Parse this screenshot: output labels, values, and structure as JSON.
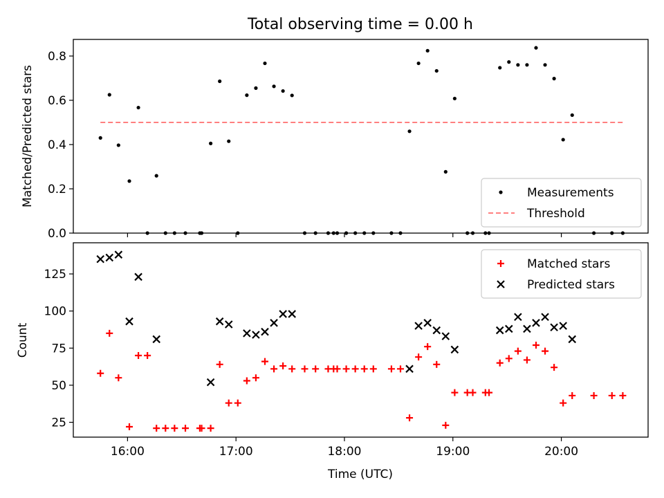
{
  "chart_data": [
    {
      "type": "scatter",
      "title": "Total observing time = 0.00 h",
      "ylabel": "Matched/Predicted stars",
      "xlabel": "",
      "ylim": [
        0,
        0.875
      ],
      "yticks": [
        0.0,
        0.2,
        0.4,
        0.6,
        0.8
      ],
      "ytick_labels": [
        "0.0",
        "0.2",
        "0.4",
        "0.6",
        "0.8"
      ],
      "legend": "bottom-right",
      "series": [
        {
          "name": "Measurements",
          "color": "#000000",
          "marker": "dot",
          "points": [
            [
              "15:45",
              0.43
            ],
            [
              "15:50",
              0.625
            ],
            [
              "15:55",
              0.397
            ],
            [
              "16:01",
              0.235
            ],
            [
              "16:06",
              0.567
            ],
            [
              "16:11",
              0.0
            ],
            [
              "16:16",
              0.259
            ],
            [
              "16:21",
              0.0
            ],
            [
              "16:26",
              0.0
            ],
            [
              "16:32",
              0.0
            ],
            [
              "16:40",
              0.0
            ],
            [
              "16:41",
              0.0
            ],
            [
              "16:46",
              0.405
            ],
            [
              "16:51",
              0.686
            ],
            [
              "16:56",
              0.415
            ],
            [
              "17:01",
              0.0
            ],
            [
              "17:06",
              0.623
            ],
            [
              "17:11",
              0.655
            ],
            [
              "17:16",
              0.767
            ],
            [
              "17:21",
              0.663
            ],
            [
              "17:26",
              0.642
            ],
            [
              "17:31",
              0.622
            ],
            [
              "17:38",
              0.0
            ],
            [
              "17:44",
              0.0
            ],
            [
              "17:51",
              0.0
            ],
            [
              "17:54",
              0.0
            ],
            [
              "17:56",
              0.0
            ],
            [
              "18:01",
              0.0
            ],
            [
              "18:06",
              0.0
            ],
            [
              "18:11",
              0.0
            ],
            [
              "18:16",
              0.0
            ],
            [
              "18:26",
              0.0
            ],
            [
              "18:31",
              0.0
            ],
            [
              "18:36",
              0.46
            ],
            [
              "18:41",
              0.767
            ],
            [
              "18:46",
              0.824
            ],
            [
              "18:51",
              0.733
            ],
            [
              "18:56",
              0.277
            ],
            [
              "19:01",
              0.608
            ],
            [
              "19:08",
              0.0
            ],
            [
              "19:11",
              0.0
            ],
            [
              "19:18",
              0.0
            ],
            [
              "19:20",
              0.0
            ],
            [
              "19:26",
              0.747
            ],
            [
              "19:31",
              0.773
            ],
            [
              "19:36",
              0.76
            ],
            [
              "19:41",
              0.76
            ],
            [
              "19:46",
              0.837
            ],
            [
              "19:51",
              0.76
            ],
            [
              "19:56",
              0.698
            ],
            [
              "20:01",
              0.422
            ],
            [
              "20:06",
              0.533
            ],
            [
              "20:18",
              0.0
            ],
            [
              "20:28",
              0.0
            ],
            [
              "20:34",
              0.0
            ]
          ]
        },
        {
          "name": "Threshold",
          "color": "#ff7f7f",
          "style": "dashed",
          "points": [
            [
              "15:45",
              0.5
            ],
            [
              "20:34",
              0.5
            ]
          ]
        }
      ]
    },
    {
      "type": "scatter",
      "title": "",
      "xlabel": "Time (UTC)",
      "ylabel": "Count",
      "ylim": [
        15,
        146
      ],
      "yticks": [
        25,
        50,
        75,
        100,
        125
      ],
      "ytick_labels": [
        "25",
        "50",
        "75",
        "100",
        "125"
      ],
      "xlim": [
        "15:30",
        "20:48"
      ],
      "xticks": [
        "16:00",
        "17:00",
        "18:00",
        "19:00",
        "20:00"
      ],
      "xtick_labels": [
        "16:00",
        "17:00",
        "18:00",
        "19:00",
        "20:00"
      ],
      "legend": "top-right",
      "series": [
        {
          "name": "Matched stars",
          "color": "#ff0000",
          "marker": "plus",
          "points": [
            [
              "15:45",
              58
            ],
            [
              "15:50",
              85
            ],
            [
              "15:55",
              55
            ],
            [
              "16:01",
              22
            ],
            [
              "16:06",
              70
            ],
            [
              "16:11",
              70
            ],
            [
              "16:16",
              21
            ],
            [
              "16:21",
              21
            ],
            [
              "16:26",
              21
            ],
            [
              "16:32",
              21
            ],
            [
              "16:40",
              21
            ],
            [
              "16:41",
              21
            ],
            [
              "16:46",
              21
            ],
            [
              "16:51",
              64
            ],
            [
              "16:56",
              38
            ],
            [
              "17:01",
              38
            ],
            [
              "17:06",
              53
            ],
            [
              "17:11",
              55
            ],
            [
              "17:16",
              66
            ],
            [
              "17:21",
              61
            ],
            [
              "17:26",
              63
            ],
            [
              "17:31",
              61
            ],
            [
              "17:38",
              61
            ],
            [
              "17:44",
              61
            ],
            [
              "17:51",
              61
            ],
            [
              "17:54",
              61
            ],
            [
              "17:56",
              61
            ],
            [
              "18:01",
              61
            ],
            [
              "18:06",
              61
            ],
            [
              "18:11",
              61
            ],
            [
              "18:16",
              61
            ],
            [
              "18:26",
              61
            ],
            [
              "18:31",
              61
            ],
            [
              "18:36",
              28
            ],
            [
              "18:41",
              69
            ],
            [
              "18:46",
              76
            ],
            [
              "18:51",
              64
            ],
            [
              "18:56",
              23
            ],
            [
              "19:01",
              45
            ],
            [
              "19:08",
              45
            ],
            [
              "19:11",
              45
            ],
            [
              "19:18",
              45
            ],
            [
              "19:20",
              45
            ],
            [
              "19:26",
              65
            ],
            [
              "19:31",
              68
            ],
            [
              "19:36",
              73
            ],
            [
              "19:41",
              67
            ],
            [
              "19:46",
              77
            ],
            [
              "19:51",
              73
            ],
            [
              "19:56",
              62
            ],
            [
              "20:01",
              38
            ],
            [
              "20:06",
              43
            ],
            [
              "20:18",
              43
            ],
            [
              "20:28",
              43
            ],
            [
              "20:34",
              43
            ]
          ]
        },
        {
          "name": "Predicted stars",
          "color": "#000000",
          "marker": "x",
          "points": [
            [
              "15:45",
              135
            ],
            [
              "15:50",
              136
            ],
            [
              "15:55",
              138
            ],
            [
              "16:01",
              93
            ],
            [
              "16:06",
              123
            ],
            [
              "16:16",
              81
            ],
            [
              "16:46",
              52
            ],
            [
              "16:51",
              93
            ],
            [
              "16:56",
              91
            ],
            [
              "17:06",
              85
            ],
            [
              "17:11",
              84
            ],
            [
              "17:16",
              86
            ],
            [
              "17:21",
              92
            ],
            [
              "17:26",
              98
            ],
            [
              "17:31",
              98
            ],
            [
              "18:36",
              61
            ],
            [
              "18:41",
              90
            ],
            [
              "18:46",
              92
            ],
            [
              "18:51",
              87
            ],
            [
              "18:56",
              83
            ],
            [
              "19:01",
              74
            ],
            [
              "19:26",
              87
            ],
            [
              "19:31",
              88
            ],
            [
              "19:36",
              96
            ],
            [
              "19:41",
              88
            ],
            [
              "19:46",
              92
            ],
            [
              "19:51",
              96
            ],
            [
              "19:56",
              89
            ],
            [
              "20:01",
              90
            ],
            [
              "20:06",
              81
            ]
          ]
        }
      ]
    }
  ]
}
